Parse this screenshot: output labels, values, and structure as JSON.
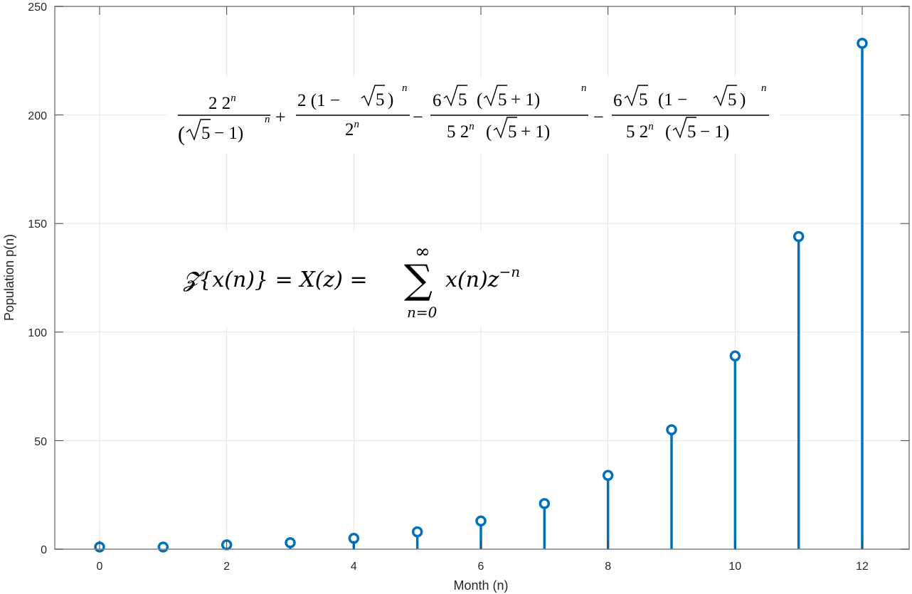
{
  "chart_data": {
    "type": "stem",
    "title": "",
    "xlabel": "Month (n)",
    "ylabel": "Population p(n)",
    "x": [
      0,
      1,
      2,
      3,
      4,
      5,
      6,
      7,
      8,
      9,
      10,
      11,
      12
    ],
    "values": [
      1,
      1,
      2,
      3,
      5,
      8,
      13,
      21,
      34,
      55,
      89,
      144,
      233
    ],
    "series": [
      {
        "name": "p(n)",
        "color": "#0072BD",
        "marker": "circle-open",
        "x": [
          0,
          1,
          2,
          3,
          4,
          5,
          6,
          7,
          8,
          9,
          10,
          11,
          12
        ],
        "values": [
          1,
          1,
          2,
          3,
          5,
          8,
          13,
          21,
          34,
          55,
          89,
          144,
          233
        ]
      }
    ],
    "xlim": [
      -0.7,
      12.75
    ],
    "ylim": [
      0,
      250
    ],
    "xticks": [
      0,
      2,
      4,
      6,
      8,
      10,
      12
    ],
    "yticks": [
      0,
      50,
      100,
      150,
      200,
      250
    ],
    "xtick_labels": [
      "0",
      "2",
      "4",
      "6",
      "8",
      "10",
      "12"
    ],
    "ytick_labels": [
      "0",
      "50",
      "100",
      "150",
      "200",
      "250"
    ],
    "grid": true,
    "legend": null,
    "annotations": [
      {
        "id": "closed_form",
        "text": "2 2^n/(√5−1)^n + 2(1−√5)^n/2^n − 6√5(√5+1)^n/(5 2^n(√5+1)) − 6√5(1−√5)^n/(5 2^n(√5−1))"
      },
      {
        "id": "z_transform",
        "text": "Z{x(n)} = X(z) = Σ_{n=0}^{∞} x(n) z^{−n}"
      }
    ]
  },
  "labels": {
    "xlabel": "Month (n)",
    "ylabel": "Population p(n)",
    "xticks": [
      "0",
      "2",
      "4",
      "6",
      "8",
      "10",
      "12"
    ],
    "yticks": [
      "0",
      "50",
      "100",
      "150",
      "200",
      "250"
    ]
  },
  "formula": {
    "t1_num_a": "2 2",
    "t1_num_exp": "n",
    "t1_den_l": "(",
    "t1_den_root": "5",
    "t1_den_rest": "− 1)",
    "t1_den_exp": "n",
    "plus": "+",
    "t2_num_a": "2  (1 −",
    "t2_num_root": "5",
    "t2_num_close": ")",
    "t2_num_exp": "n",
    "t2_den": "2",
    "t2_den_exp": "n",
    "minus1": "−",
    "t3_num_6": "6",
    "t3_num_root1": "5",
    "t3_num_open": "(",
    "t3_num_root2": "5",
    "t3_num_rest": "+ 1)",
    "t3_num_exp": "n",
    "t3_den_a": "5 2",
    "t3_den_exp": "n",
    "t3_den_open": "(",
    "t3_den_root": "5",
    "t3_den_rest": "+ 1)",
    "minus2": "−",
    "t4_num_6": "6",
    "t4_num_root1": "5",
    "t4_num_open": "(1 −",
    "t4_num_root2": "5",
    "t4_num_close": ")",
    "t4_num_exp": "n",
    "t4_den_a": "5 2",
    "t4_den_exp": "n",
    "t4_den_open": "(",
    "t4_den_root": "5",
    "t4_den_rest": "− 1)"
  },
  "ztransform": {
    "lhs": "𝓩{x(n)} = X(z) =",
    "sum": "∑",
    "upper": "∞",
    "lower": "n=0",
    "rhs": "x(n)z",
    "rhs_exp": "−n"
  }
}
